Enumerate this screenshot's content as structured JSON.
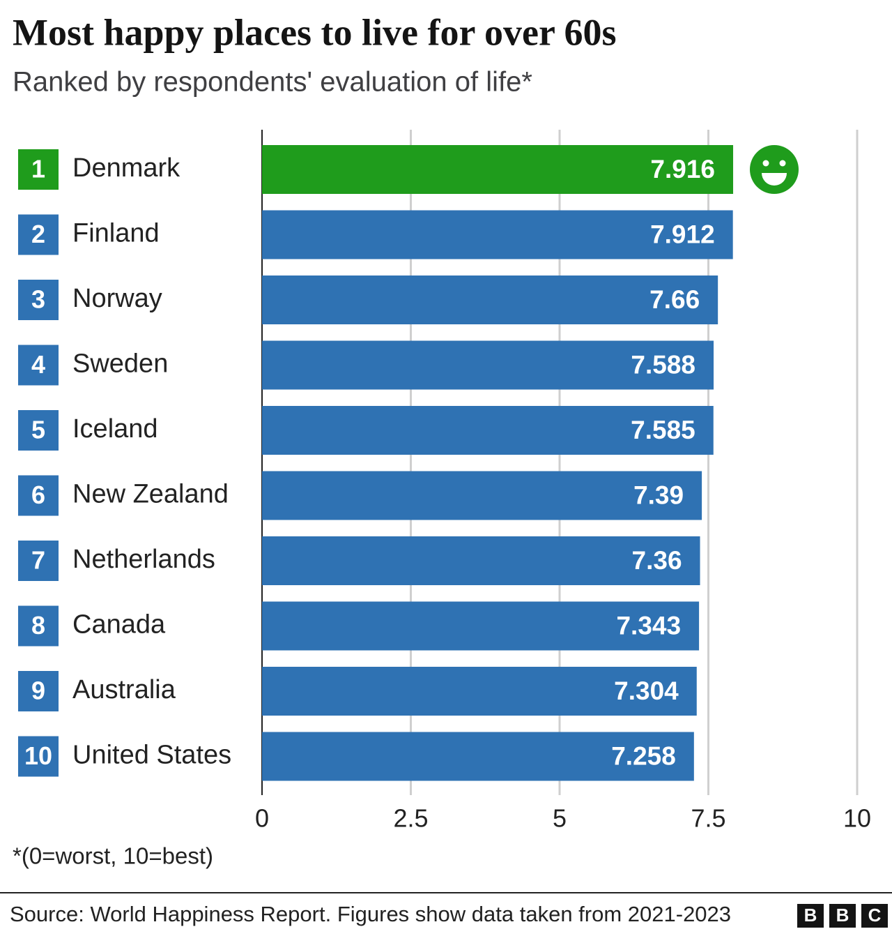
{
  "chart_data": {
    "type": "bar",
    "orientation": "horizontal",
    "title": "Most happy places to live for over 60s",
    "subtitle": "Ranked by respondents' evaluation of life*",
    "ranks": [
      1,
      2,
      3,
      4,
      5,
      6,
      7,
      8,
      9,
      10
    ],
    "categories": [
      "Denmark",
      "Finland",
      "Norway",
      "Sweden",
      "Iceland",
      "New Zealand",
      "Netherlands",
      "Canada",
      "Australia",
      "United States"
    ],
    "values": [
      7.916,
      7.912,
      7.66,
      7.588,
      7.585,
      7.39,
      7.36,
      7.343,
      7.304,
      7.258
    ],
    "colors": [
      "#1f9c1c",
      "#2f72b3",
      "#2f72b3",
      "#2f72b3",
      "#2f72b3",
      "#2f72b3",
      "#2f72b3",
      "#2f72b3",
      "#2f72b3",
      "#2f72b3"
    ],
    "xlim": [
      0,
      10
    ],
    "xticks": [
      0,
      2.5,
      5,
      7.5,
      10
    ],
    "grid": true,
    "footnote": "*(0=worst, 10=best)",
    "source": "Source: World Happiness Report. Figures show data taken from 2021-2023",
    "logo": [
      "B",
      "B",
      "C"
    ]
  }
}
